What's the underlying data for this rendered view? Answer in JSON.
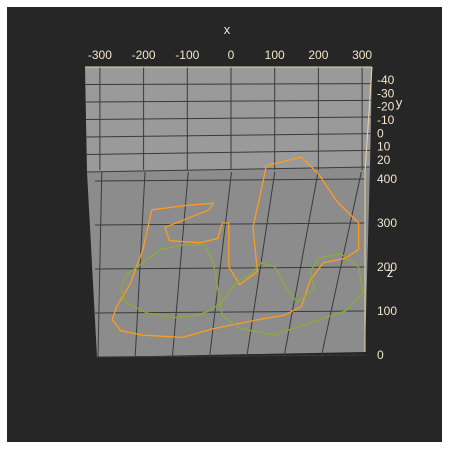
{
  "chart_data": {
    "type": "line3d",
    "title": "",
    "axes": {
      "x": {
        "label": "x",
        "ticks": [
          -300,
          -200,
          -100,
          0,
          100,
          200,
          300
        ],
        "range": [
          -320,
          320
        ]
      },
      "y": {
        "label": "y",
        "ticks": [
          -40,
          -30,
          -20,
          -10,
          0,
          10,
          20
        ],
        "range": [
          -45,
          25
        ]
      },
      "z": {
        "label": "z",
        "ticks": [
          0,
          100,
          200,
          300,
          400
        ],
        "range": [
          0,
          480
        ]
      }
    },
    "grid": true,
    "colors": {
      "background": "#262626",
      "pane": "#8c8c8c",
      "grid": "#3a3a3a",
      "text": "#f2e6cc",
      "axis_line": "#e8d5a6"
    },
    "series": [
      {
        "color": "#ff9c1a",
        "points": [
          [
            -180,
            0,
            330
          ],
          [
            -100,
            0,
            340
          ],
          [
            -40,
            0,
            345
          ],
          [
            -50,
            0,
            330
          ],
          [
            -150,
            0,
            290
          ],
          [
            -140,
            0,
            260
          ],
          [
            -70,
            0,
            255
          ],
          [
            -30,
            0,
            265
          ],
          [
            -20,
            0,
            300
          ],
          [
            -5,
            0,
            300
          ],
          [
            -5,
            0,
            200
          ],
          [
            20,
            0,
            160
          ],
          [
            60,
            0,
            190
          ],
          [
            50,
            0,
            290
          ],
          [
            70,
            0,
            380
          ],
          [
            80,
            0,
            430
          ],
          [
            160,
            0,
            450
          ],
          [
            200,
            0,
            410
          ],
          [
            240,
            0,
            350
          ],
          [
            290,
            0,
            300
          ],
          [
            290,
            0,
            240
          ],
          [
            260,
            0,
            220
          ],
          [
            210,
            0,
            210
          ],
          [
            180,
            0,
            170
          ],
          [
            160,
            0,
            110
          ],
          [
            120,
            0,
            90
          ],
          [
            60,
            0,
            80
          ],
          [
            10,
            0,
            70
          ],
          [
            -40,
            0,
            60
          ],
          [
            -110,
            0,
            40
          ],
          [
            -200,
            0,
            45
          ],
          [
            -250,
            0,
            55
          ],
          [
            -270,
            0,
            80
          ],
          [
            -260,
            0,
            110
          ],
          [
            -230,
            0,
            160
          ],
          [
            -200,
            0,
            240
          ],
          [
            -180,
            0,
            330
          ]
        ]
      },
      {
        "color": "#8aad3a",
        "points": [
          [
            -240,
            0,
            180
          ],
          [
            -200,
            0,
            210
          ],
          [
            -160,
            0,
            240
          ],
          [
            -110,
            0,
            250
          ],
          [
            -60,
            0,
            250
          ],
          [
            -40,
            0,
            210
          ],
          [
            -30,
            0,
            150
          ],
          [
            -20,
            0,
            90
          ],
          [
            20,
            0,
            60
          ],
          [
            100,
            0,
            45
          ],
          [
            140,
            0,
            60
          ],
          [
            200,
            0,
            80
          ],
          [
            260,
            0,
            100
          ],
          [
            300,
            0,
            140
          ],
          [
            290,
            0,
            200
          ],
          [
            250,
            0,
            230
          ],
          [
            200,
            0,
            220
          ],
          [
            180,
            0,
            190
          ],
          [
            190,
            0,
            150
          ],
          [
            150,
            0,
            120
          ],
          [
            120,
            0,
            160
          ],
          [
            100,
            0,
            200
          ],
          [
            70,
            0,
            210
          ],
          [
            40,
            0,
            180
          ],
          [
            20,
            0,
            170
          ],
          [
            0,
            0,
            150
          ],
          [
            -20,
            0,
            120
          ],
          [
            -50,
            0,
            100
          ],
          [
            -80,
            0,
            90
          ],
          [
            -130,
            0,
            85
          ],
          [
            -190,
            0,
            95
          ],
          [
            -240,
            0,
            120
          ],
          [
            -250,
            0,
            150
          ],
          [
            -240,
            0,
            180
          ]
        ]
      }
    ]
  }
}
